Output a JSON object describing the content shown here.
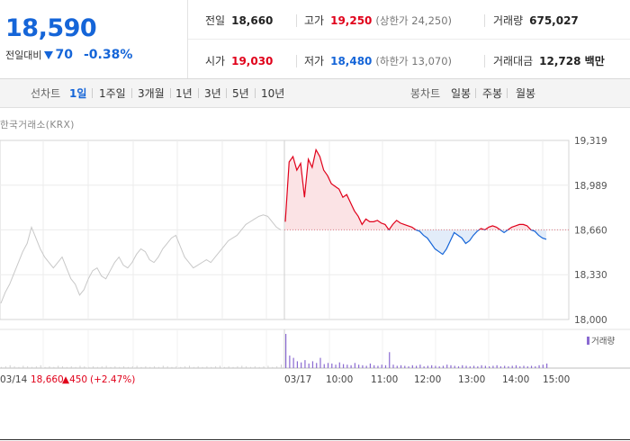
{
  "price": {
    "current": "18,590",
    "change_label": "전일대비",
    "change_value": "70",
    "change_pct": "-0.38%"
  },
  "stats": {
    "prev_close": {
      "label": "전일",
      "value": "18,660"
    },
    "high": {
      "label": "고가",
      "value": "19,250",
      "limit_label": "(상한가 24,250)"
    },
    "volume": {
      "label": "거래량",
      "value": "675,027"
    },
    "open": {
      "label": "시가",
      "value": "19,030"
    },
    "low": {
      "label": "저가",
      "value": "18,480",
      "limit_label": "(하한가 13,070)"
    },
    "amount": {
      "label": "거래대금",
      "value": "12,728 백만"
    }
  },
  "tabs": {
    "line_label": "선차트",
    "periods": [
      "1일",
      "1주일",
      "3개월",
      "1년",
      "3년",
      "5년",
      "10년"
    ],
    "active_period": "1일",
    "candle_label": "봉차트",
    "candles": [
      "일봉",
      "주봉",
      "월봉"
    ]
  },
  "source": "한국거래소(KRX)",
  "volume_legend": "거래량",
  "prev_day_note": {
    "date": "03/14",
    "close": "18,660",
    "change": "▲450",
    "pct": "(+2.47%)"
  },
  "colors": {
    "up": "#e0001a",
    "down": "#1565d8",
    "prev_day_line": "#c8c8c8",
    "up_fill": "#fbe3e5",
    "down_fill": "#e2ecf9",
    "volume_today": "#8a6ad1",
    "volume_prev": "#cfcfcf"
  },
  "chart_data": {
    "type": "line",
    "y_ticks": [
      "19,319",
      "18,989",
      "18,660",
      "18,330",
      "18,000"
    ],
    "ylim": [
      18000,
      19319
    ],
    "baseline": 18660,
    "x_ticks": [
      "03/17",
      "10:00",
      "11:00",
      "12:00",
      "13:00",
      "14:00",
      "15:00"
    ],
    "series": [
      {
        "day": "03/14",
        "values": [
          18120,
          18200,
          18260,
          18340,
          18420,
          18500,
          18560,
          18680,
          18600,
          18520,
          18460,
          18420,
          18380,
          18420,
          18460,
          18380,
          18300,
          18260,
          18180,
          18220,
          18300,
          18360,
          18380,
          18320,
          18300,
          18360,
          18420,
          18460,
          18400,
          18380,
          18420,
          18480,
          18520,
          18500,
          18440,
          18420,
          18460,
          18520,
          18560,
          18600,
          18620,
          18540,
          18460,
          18420,
          18380,
          18400,
          18420,
          18440,
          18420,
          18460,
          18500,
          18540,
          18580,
          18600,
          18620,
          18660,
          18700,
          18720,
          18740,
          18760,
          18770,
          18760,
          18720,
          18680,
          18660
        ]
      },
      {
        "day": "03/17",
        "values": [
          18720,
          19160,
          19200,
          19100,
          19150,
          18900,
          19180,
          19120,
          19250,
          19200,
          19100,
          19060,
          19000,
          18980,
          18960,
          18900,
          18920,
          18860,
          18800,
          18760,
          18700,
          18740,
          18720,
          18720,
          18730,
          18710,
          18700,
          18660,
          18700,
          18730,
          18710,
          18700,
          18690,
          18680,
          18660,
          18650,
          18620,
          18600,
          18560,
          18520,
          18500,
          18480,
          18520,
          18580,
          18640,
          18620,
          18600,
          18560,
          18580,
          18620,
          18650,
          18670,
          18660,
          18680,
          18690,
          18680,
          18660,
          18640,
          18660,
          18680,
          18690,
          18700,
          18700,
          18690,
          18660,
          18650,
          18620,
          18600,
          18590
        ]
      }
    ],
    "volume": {
      "prev_day": [
        2,
        3,
        5,
        3,
        2,
        4,
        3,
        2,
        3,
        5,
        2,
        3,
        2,
        4,
        3,
        2,
        3,
        2,
        4,
        3,
        2,
        3,
        2,
        3,
        4,
        2,
        3,
        2,
        3,
        2,
        3,
        4,
        2,
        3,
        2,
        3,
        2,
        4,
        3,
        2,
        3,
        2,
        3,
        4,
        2,
        3,
        2,
        3,
        2,
        3,
        4,
        2,
        3,
        2,
        3,
        4,
        3,
        2,
        3,
        2,
        3,
        4,
        2,
        3,
        6
      ],
      "today": [
        60,
        22,
        18,
        12,
        10,
        14,
        8,
        12,
        9,
        18,
        7,
        9,
        8,
        6,
        10,
        7,
        6,
        5,
        9,
        6,
        5,
        4,
        8,
        5,
        4,
        6,
        5,
        28,
        6,
        4,
        5,
        4,
        3,
        5,
        4,
        6,
        3,
        4,
        5,
        4,
        3,
        4,
        6,
        5,
        4,
        3,
        5,
        4,
        3,
        4,
        3,
        5,
        4,
        3,
        4,
        5,
        3,
        4,
        3,
        4,
        5,
        3,
        4,
        3,
        4,
        3,
        5,
        6,
        8
      ]
    }
  }
}
